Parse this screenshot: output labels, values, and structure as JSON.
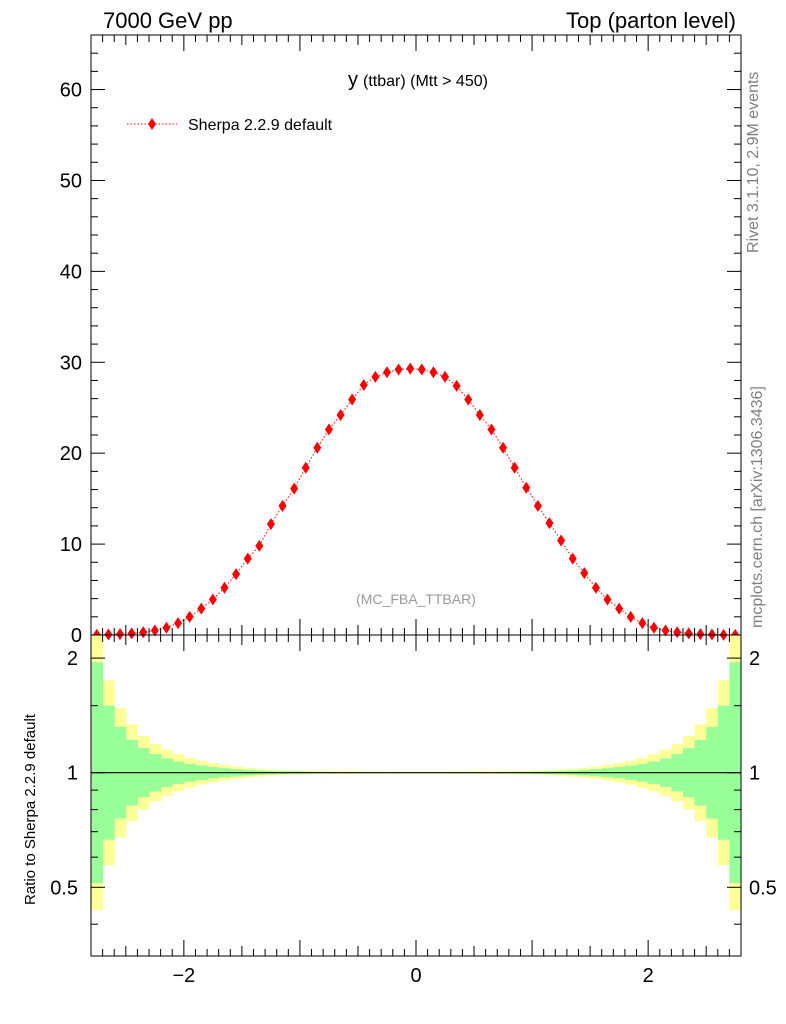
{
  "header": {
    "left": "7000 GeV pp",
    "right": "Top (parton level)"
  },
  "side_labels": {
    "rivet": "Rivet 3.1.10,  2.9M events",
    "mcplots": "mcplots.cern.ch [arXiv:1306.3436]"
  },
  "chart_data": [
    {
      "type": "scatter",
      "title": "y (ttbar) (Mtt > 450)",
      "title_main": "y",
      "title_sub": "(ttbar) (Mtt > 450)",
      "watermark": "(MC_FBA_TTBAR)",
      "xlim": [
        -2.8,
        2.8
      ],
      "ylim": [
        0,
        66
      ],
      "x_ticks": [
        -2,
        0,
        2
      ],
      "y_ticks": [
        0,
        10,
        20,
        30,
        40,
        50,
        60
      ],
      "legend_position": "top-left",
      "marker_color": "#ff0000",
      "series": [
        {
          "name": "Sherpa 2.2.9 default",
          "style": "dotted line with diamond markers",
          "x": [
            -2.75,
            -2.65,
            -2.55,
            -2.45,
            -2.35,
            -2.25,
            -2.15,
            -2.05,
            -1.95,
            -1.85,
            -1.75,
            -1.65,
            -1.55,
            -1.45,
            -1.35,
            -1.25,
            -1.15,
            -1.05,
            -0.95,
            -0.85,
            -0.75,
            -0.65,
            -0.55,
            -0.45,
            -0.35,
            -0.25,
            -0.15,
            -0.05,
            0.05,
            0.15,
            0.25,
            0.35,
            0.45,
            0.55,
            0.65,
            0.75,
            0.85,
            0.95,
            1.05,
            1.15,
            1.25,
            1.35,
            1.45,
            1.55,
            1.65,
            1.75,
            1.85,
            1.95,
            2.05,
            2.15,
            2.25,
            2.35,
            2.45,
            2.55,
            2.65,
            2.75
          ],
          "y": [
            0.02,
            0.05,
            0.1,
            0.18,
            0.3,
            0.5,
            0.8,
            1.3,
            2.0,
            2.9,
            3.9,
            5.2,
            6.7,
            8.4,
            9.8,
            12.2,
            14.2,
            16.1,
            18.4,
            20.6,
            22.6,
            24.2,
            25.9,
            27.5,
            28.4,
            28.9,
            29.2,
            29.3,
            29.2,
            28.9,
            28.4,
            27.4,
            25.9,
            24.2,
            22.6,
            20.6,
            18.4,
            16.2,
            14.2,
            12.3,
            10.4,
            8.4,
            6.8,
            5.2,
            3.9,
            2.9,
            2.0,
            1.3,
            0.8,
            0.5,
            0.3,
            0.18,
            0.1,
            0.05,
            0.02,
            0.01
          ]
        }
      ]
    },
    {
      "type": "area",
      "ylabel": "Ratio to Sherpa 2.2.9 default",
      "xlim": [
        -2.8,
        2.8
      ],
      "ylim": [
        0.33,
        2.3
      ],
      "y_tick_labels": [
        "0.5",
        "1",
        "2"
      ],
      "x_ticks": [
        -2,
        0,
        2
      ],
      "band_colors": {
        "inner": "#99ff99",
        "outer": "#ffff99"
      },
      "reference_line": 1.0,
      "x_edges": [
        -2.8,
        -2.7,
        -2.6,
        -2.5,
        -2.4,
        -2.3,
        -2.2,
        -2.1,
        -2.0,
        -1.9,
        -1.8,
        -1.7,
        -1.6,
        -1.5,
        -1.4,
        -1.3,
        -1.2,
        -1.1,
        -1.0,
        -0.9,
        -0.8,
        -0.7,
        -0.6,
        -0.5,
        -0.4,
        -0.3,
        -0.2,
        -0.1,
        0.0,
        0.1,
        0.2,
        0.3,
        0.4,
        0.5,
        0.6,
        0.7,
        0.8,
        0.9,
        1.0,
        1.1,
        1.2,
        1.3,
        1.4,
        1.5,
        1.6,
        1.7,
        1.8,
        1.9,
        2.0,
        2.1,
        2.2,
        2.3,
        2.4,
        2.5,
        2.6,
        2.7,
        2.8
      ],
      "bands": {
        "inner_rel": [
          0.95,
          0.5,
          0.32,
          0.22,
          0.16,
          0.12,
          0.09,
          0.07,
          0.055,
          0.045,
          0.035,
          0.028,
          0.022,
          0.017,
          0.013,
          0.01,
          0.008,
          0.007,
          0.006,
          0.005,
          0.005,
          0.004,
          0.004,
          0.004,
          0.003,
          0.003,
          0.003,
          0.003,
          0.003,
          0.003,
          0.003,
          0.003,
          0.004,
          0.004,
          0.004,
          0.005,
          0.005,
          0.006,
          0.007,
          0.008,
          0.01,
          0.013,
          0.017,
          0.022,
          0.028,
          0.035,
          0.045,
          0.055,
          0.07,
          0.09,
          0.12,
          0.16,
          0.22,
          0.32,
          0.5,
          0.95
        ],
        "outer_rel": [
          1.3,
          0.75,
          0.48,
          0.34,
          0.25,
          0.19,
          0.15,
          0.12,
          0.095,
          0.075,
          0.06,
          0.048,
          0.038,
          0.03,
          0.023,
          0.018,
          0.014,
          0.012,
          0.01,
          0.009,
          0.008,
          0.007,
          0.007,
          0.006,
          0.006,
          0.005,
          0.005,
          0.005,
          0.005,
          0.005,
          0.005,
          0.006,
          0.006,
          0.007,
          0.007,
          0.008,
          0.009,
          0.01,
          0.012,
          0.014,
          0.018,
          0.023,
          0.03,
          0.038,
          0.048,
          0.06,
          0.075,
          0.095,
          0.12,
          0.15,
          0.19,
          0.25,
          0.34,
          0.48,
          0.75,
          1.3
        ]
      }
    }
  ]
}
